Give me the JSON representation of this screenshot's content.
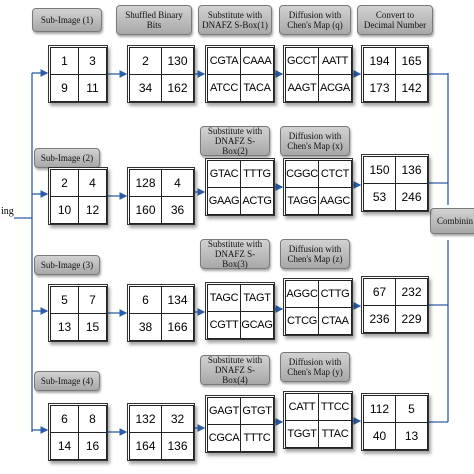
{
  "left_box_text": "ing",
  "right_box_text": "Combinin",
  "header": {
    "sub_image": "Sub-Image (1)",
    "shuffled": "Shuffled Binary\nBits",
    "substitute": "Substitute with\nDNAFZ S-Box(1)",
    "diffusion": "Diffusion with\nChen's Map (q)",
    "convert": "Convert to\nDecimal Number"
  },
  "rows": [
    {
      "sub_image": [
        "1",
        "3",
        "9",
        "11"
      ],
      "shuffled": [
        "2",
        "130",
        "34",
        "162"
      ],
      "substituted": [
        "CGTA",
        "CAAA",
        "ATCC",
        "TACA"
      ],
      "diffused": [
        "GCCT",
        "AATT",
        "AAGT",
        "ACGA"
      ],
      "decimal": [
        "194",
        "165",
        "173",
        "142"
      ]
    },
    {
      "label": "Sub-Image (2)",
      "sub_label": "Substitute with\nDNAFZ S-Box(2)",
      "diff_label": "Diffusion with\nChen's Map (x)",
      "sub_image": [
        "2",
        "4",
        "10",
        "12"
      ],
      "shuffled": [
        "128",
        "4",
        "160",
        "36"
      ],
      "substituted": [
        "GTAC",
        "TTTG",
        "GAAG",
        "ACTG"
      ],
      "diffused": [
        "CGGC",
        "CTCT",
        "TAGG",
        "AAGC"
      ],
      "decimal": [
        "150",
        "136",
        "53",
        "246"
      ]
    },
    {
      "label": "Sub-Image (3)",
      "sub_label": "Substitute with\nDNAFZ S-Box(3)",
      "diff_label": "Diffusion with\nChen's Map (z)",
      "sub_image": [
        "5",
        "7",
        "13",
        "15"
      ],
      "shuffled": [
        "6",
        "134",
        "38",
        "166"
      ],
      "substituted": [
        "TAGC",
        "TAGT",
        "CGTT",
        "GCAG"
      ],
      "diffused": [
        "AGGC",
        "CTTG",
        "CTCG",
        "CTAA"
      ],
      "decimal": [
        "67",
        "232",
        "236",
        "229"
      ]
    },
    {
      "label": "Sub-Image (4)",
      "sub_label": "Substitute with\nDNAFZ S-Box(4)",
      "diff_label": "Diffusion with\nChen's Map (y)",
      "sub_image": [
        "6",
        "8",
        "14",
        "16"
      ],
      "shuffled": [
        "132",
        "32",
        "164",
        "136"
      ],
      "substituted": [
        "GAGT",
        "GTGT",
        "CGCA",
        "TTTC"
      ],
      "diffused": [
        "CATT",
        "TTCC",
        "TGGT",
        "TTAC"
      ],
      "decimal": [
        "112",
        "5",
        "40",
        "13"
      ]
    }
  ],
  "colors": {
    "box_top": "#d2d2d2",
    "box_bottom": "#a8a8a8",
    "line": "#2a5fa8"
  }
}
